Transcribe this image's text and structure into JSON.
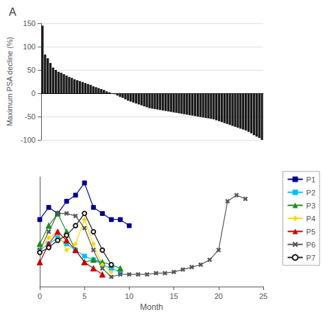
{
  "chart_data": [
    {
      "type": "bar",
      "title": "A",
      "ylabel": "Maximum PSA decline (%)",
      "values": [
        145,
        83,
        75,
        65,
        55,
        50,
        46,
        44,
        41,
        38,
        35,
        33,
        30,
        28,
        26,
        24,
        22,
        20,
        18,
        15,
        13,
        11,
        9,
        7,
        4,
        2,
        0,
        -2,
        -5,
        -8,
        -10,
        -13,
        -16,
        -18,
        -20,
        -22,
        -24,
        -26,
        -28,
        -30,
        -32,
        -33,
        -34,
        -35,
        -36,
        -37,
        -38,
        -39,
        -40,
        -41,
        -42,
        -43,
        -44,
        -45,
        -46,
        -47,
        -48,
        -49,
        -50,
        -51,
        -52,
        -53,
        -54,
        -55,
        -56,
        -58,
        -60,
        -62,
        -64,
        -66,
        -68,
        -70,
        -72,
        -74,
        -76,
        -78,
        -80,
        -83,
        -86,
        -90,
        -93,
        -96,
        -100
      ],
      "color": "#1a1a1a",
      "ylim": [
        -100,
        150
      ],
      "yticks": [
        -100,
        -50,
        0,
        50,
        100,
        150
      ],
      "grid": true,
      "tick_labels": "y"
    },
    {
      "type": "line",
      "xlabel": "Month",
      "xlim": [
        0,
        25
      ],
      "xticks": [
        0,
        5,
        10,
        15,
        20,
        25
      ],
      "ylim": [
        0,
        90
      ],
      "grid": false,
      "tick_labels": "x",
      "legend": "right",
      "series": [
        {
          "name": "P1",
          "color": "#00008B",
          "marker": "square",
          "x": [
            0,
            1,
            2,
            3,
            4,
            5,
            6,
            7,
            8,
            9,
            10
          ],
          "values": [
            55,
            65,
            60,
            70,
            75,
            85,
            65,
            60,
            55,
            55,
            50
          ]
        },
        {
          "name": "P2",
          "color": "#00BFFF",
          "marker": "square",
          "x": [
            0,
            1,
            2,
            3,
            4,
            5,
            6,
            7,
            8,
            9
          ],
          "values": [
            30,
            35,
            40,
            35,
            30,
            25,
            22,
            18,
            15,
            12
          ]
        },
        {
          "name": "P3",
          "color": "#228B22",
          "marker": "triangle",
          "x": [
            0,
            1,
            2,
            3,
            4,
            5,
            6,
            7,
            8,
            9
          ],
          "values": [
            35,
            50,
            60,
            45,
            30,
            20,
            22,
            20,
            18,
            15
          ]
        },
        {
          "name": "P4",
          "color": "#FFD700",
          "marker": "diamond",
          "x": [
            0,
            1,
            2,
            3,
            4,
            5,
            6,
            7,
            8
          ],
          "values": [
            30,
            40,
            45,
            30,
            35,
            55,
            35,
            18,
            12
          ]
        },
        {
          "name": "P5",
          "color": "#CC0000",
          "marker": "triangle",
          "x": [
            0,
            1,
            2,
            3,
            4,
            5,
            6,
            7
          ],
          "values": [
            20,
            35,
            45,
            38,
            30,
            20,
            15,
            10
          ]
        },
        {
          "name": "P6",
          "color": "#555555",
          "marker": "x",
          "x": [
            0,
            1,
            2,
            3,
            4,
            5,
            6,
            7,
            8,
            9,
            10,
            11,
            12,
            13,
            14,
            15,
            16,
            17,
            18,
            19,
            20,
            21,
            22,
            23
          ],
          "values": [
            30,
            45,
            60,
            60,
            58,
            48,
            30,
            15,
            8,
            10,
            10,
            10,
            10,
            11,
            11,
            12,
            14,
            16,
            18,
            22,
            30,
            70,
            75,
            72
          ]
        },
        {
          "name": "P7",
          "color": "#1a1a1a",
          "marker": "hollow-circle",
          "x": [
            0,
            1,
            2,
            3,
            4,
            5,
            6,
            7,
            8
          ],
          "values": [
            28,
            32,
            38,
            42,
            50,
            60,
            45,
            30,
            18
          ]
        }
      ]
    }
  ]
}
